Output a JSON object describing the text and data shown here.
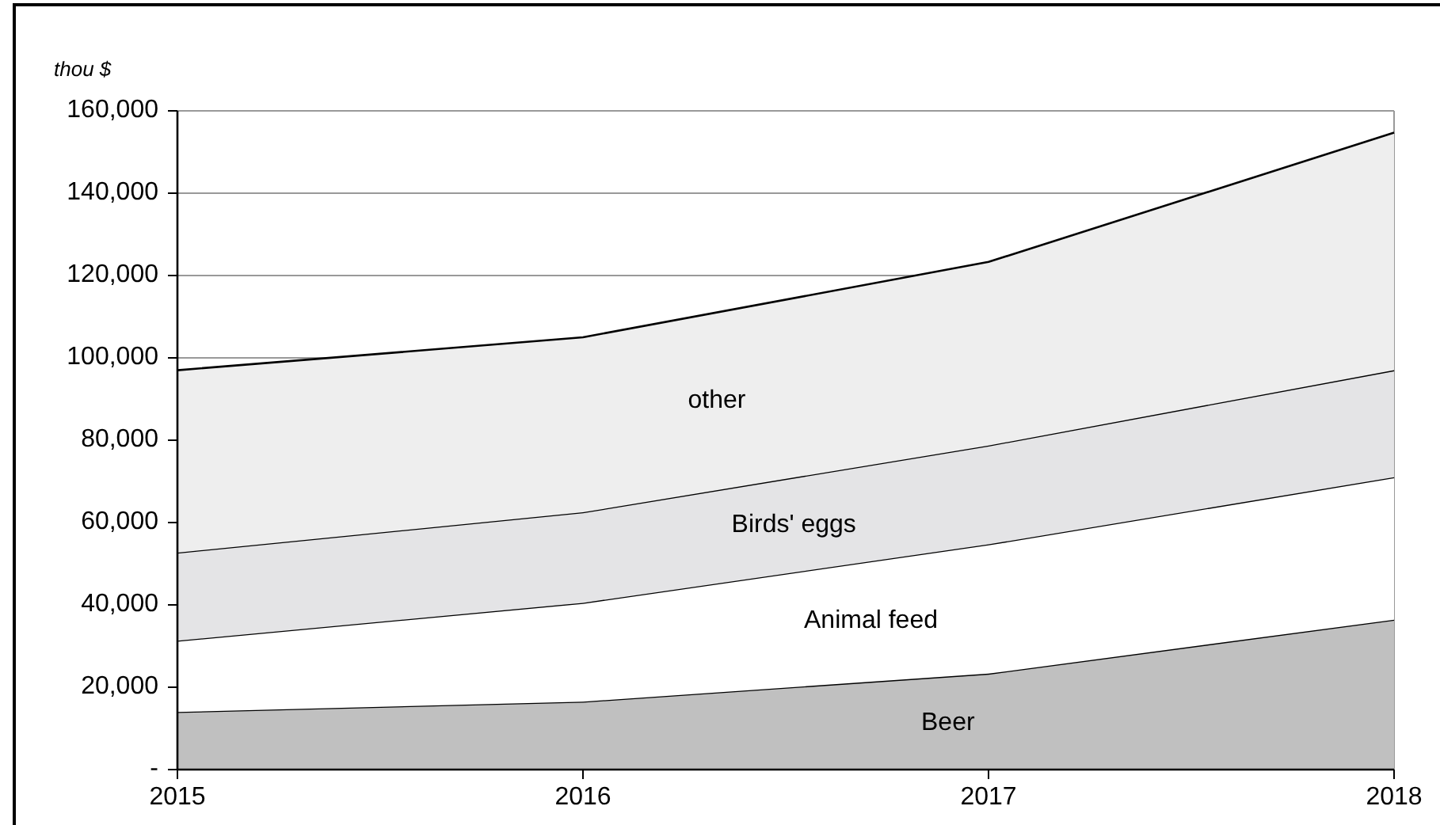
{
  "chart_data": {
    "type": "area",
    "stacked": true,
    "ylabel": "thou $",
    "categories": [
      "2015",
      "2016",
      "2017",
      "2018"
    ],
    "series": [
      {
        "name": "Beer",
        "color": "#c0c0c0",
        "values": [
          14000,
          16500,
          23300,
          36400
        ]
      },
      {
        "name": "Animal feed",
        "color": "#ffffff",
        "values": [
          17300,
          24000,
          31400,
          34600
        ]
      },
      {
        "name": "Birds' eggs",
        "color": "#e4e4e6",
        "values": [
          21400,
          22000,
          24000,
          26000
        ]
      },
      {
        "name": "other",
        "color": "#eeeeee",
        "values": [
          44300,
          42500,
          44600,
          57700
        ]
      }
    ],
    "ylim": [
      0,
      160000
    ],
    "yticks": [
      {
        "value": 0,
        "label": "-"
      },
      {
        "value": 20000,
        "label": "20,000"
      },
      {
        "value": 40000,
        "label": "40,000"
      },
      {
        "value": 60000,
        "label": "60,000"
      },
      {
        "value": 80000,
        "label": "80,000"
      },
      {
        "value": 100000,
        "label": "100,000"
      },
      {
        "value": 120000,
        "label": "120,000"
      },
      {
        "value": 140000,
        "label": "140,000"
      },
      {
        "value": 160000,
        "label": "160,000"
      }
    ],
    "grid": "y"
  }
}
